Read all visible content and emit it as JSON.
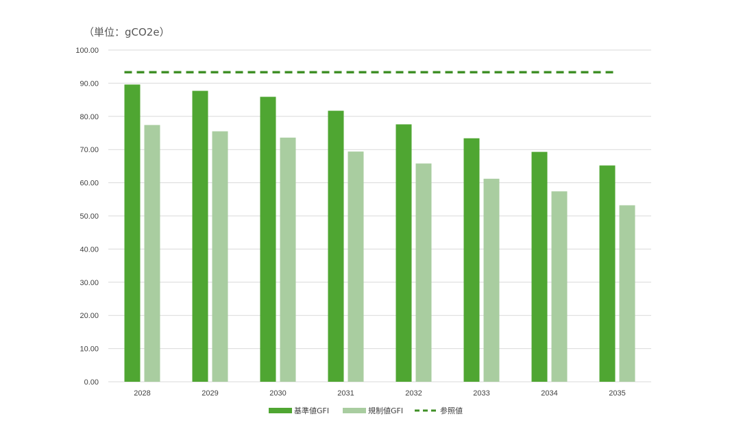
{
  "unit_label": "（単位：gCO2e）",
  "colors": {
    "base": "#4fa632",
    "regulated": "#a9cda0",
    "reference": "#3f8f26",
    "grid": "#d9d9d9",
    "text": "#404040"
  },
  "chart_data": {
    "type": "bar",
    "title": "",
    "xlabel": "",
    "ylabel": "",
    "categories": [
      "2028",
      "2029",
      "2030",
      "2031",
      "2032",
      "2033",
      "2034",
      "2035"
    ],
    "ylim": [
      0,
      100
    ],
    "yticks": [
      "0.00",
      "10.00",
      "20.00",
      "30.00",
      "40.00",
      "50.00",
      "60.00",
      "70.00",
      "80.00",
      "90.00",
      "100.00"
    ],
    "grid": true,
    "legend_position": "bottom",
    "series": [
      {
        "name": "基準値GFI",
        "kind": "bar",
        "color": "#4fa632",
        "values": [
          89.6,
          87.7,
          85.9,
          81.7,
          77.6,
          73.4,
          69.3,
          65.2
        ]
      },
      {
        "name": "規制値GFI",
        "kind": "bar",
        "color": "#a9cda0",
        "values": [
          77.4,
          75.5,
          73.6,
          69.4,
          65.8,
          61.2,
          57.4,
          53.2
        ]
      },
      {
        "name": "参照値",
        "kind": "dashed-line",
        "color": "#3f8f26",
        "values": [
          93.3,
          93.3,
          93.3,
          93.3,
          93.3,
          93.3,
          93.3,
          93.3
        ]
      }
    ]
  }
}
